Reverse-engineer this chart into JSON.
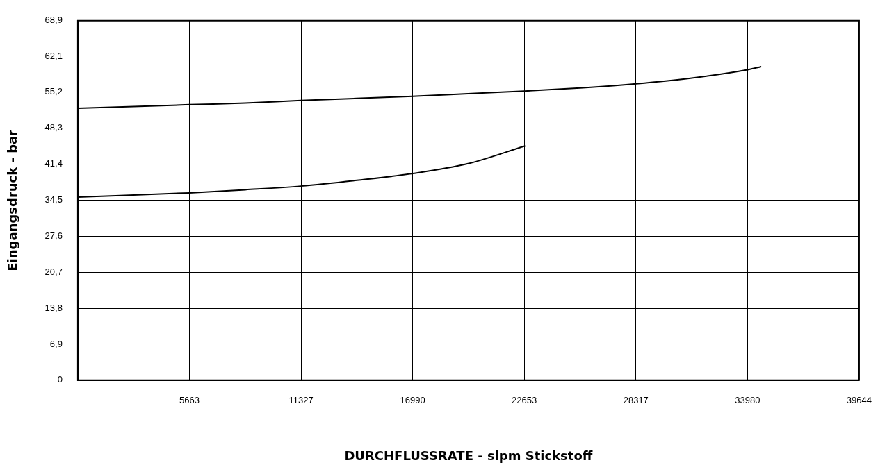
{
  "chart_data": {
    "type": "line",
    "xlabel": "DURCHFLUSSRATE - slpm Stickstoff",
    "ylabel": "Eingangsdruck - bar",
    "xlim": [
      0,
      39644
    ],
    "xticks": [
      5663,
      11327,
      16990,
      22653,
      28317,
      33980,
      39644
    ],
    "ylim": [
      0,
      68.9
    ],
    "yticks": [
      0,
      {
        "value": 6.9,
        "label": "6,9"
      },
      {
        "value": 13.8,
        "label": "13,8"
      },
      {
        "value": 20.7,
        "label": "20,7"
      },
      {
        "value": 27.6,
        "label": "27,6"
      },
      {
        "value": 34.5,
        "label": "34,5"
      },
      {
        "value": 41.4,
        "label": "41,4"
      },
      {
        "value": 48.3,
        "label": "48,3"
      },
      {
        "value": 55.2,
        "label": "55,2"
      },
      {
        "value": 62.1,
        "label": "62,1"
      },
      {
        "value": 68.9,
        "label": "68,9"
      }
    ],
    "grid": true,
    "legend": false,
    "marker": "none",
    "line_style": "solid",
    "series": [
      {
        "color": "#000000",
        "x": [
          0,
          5663,
          8495,
          11327,
          16990,
          19800,
          22653,
          25485,
          28317,
          31150,
          33980,
          34680
        ],
        "values": [
          52.1,
          52.8,
          53.1,
          53.6,
          54.4,
          54.9,
          55.4,
          56.0,
          56.8,
          57.9,
          59.5,
          60.1
        ]
      },
      {
        "color": "#000000",
        "x": [
          0,
          5663,
          8495,
          11327,
          14160,
          16990,
          19800,
          22700
        ],
        "values": [
          35.1,
          35.9,
          36.5,
          37.2,
          38.3,
          39.6,
          41.5,
          44.9
        ]
      }
    ]
  }
}
